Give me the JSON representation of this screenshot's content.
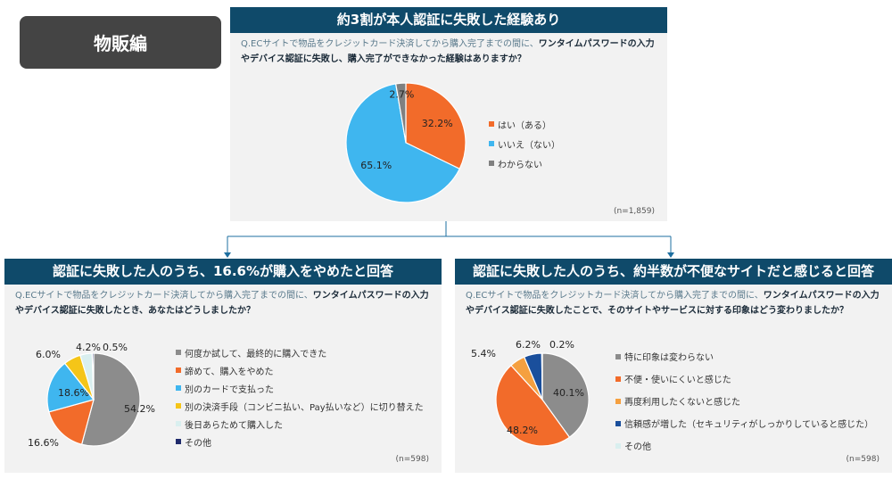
{
  "badge": "物販編",
  "n_labels": [
    "(n=1,859)",
    "(n=598)",
    "(n=598)"
  ],
  "chart_data": [
    {
      "type": "pie",
      "title": "約3割が本人認証に失敗した経験あり",
      "question_plain": "Q.ECサイトで物品をクレジットカード決済してから購入完了までの間に、",
      "question_bold": "ワンタイムパスワードの入力やデバイス認証に失敗し、購入完了ができなかった経験はありますか？",
      "n": "(n=1,859)",
      "slices": [
        {
          "label": "はい（ある）",
          "value": 32.2,
          "color": "#f26b2a"
        },
        {
          "label": "いいえ（ない）",
          "value": 65.1,
          "color": "#3fb6ef"
        },
        {
          "label": "わからない",
          "value": 2.7,
          "color": "#808080"
        }
      ]
    },
    {
      "type": "pie",
      "title": "認証に失敗した人のうち、16.6%が購入をやめたと回答",
      "question_plain": "Q.ECサイトで物品をクレジットカード決済してから購入完了までの間に、",
      "question_bold": "ワンタイムパスワードの入力やデバイス認証に失敗したとき、あなたはどうしましたか？",
      "n": "(n=598)",
      "slices": [
        {
          "label": "何度か試して、最終的に購入できた",
          "value": 54.2,
          "color": "#8c8c8c"
        },
        {
          "label": "諦めて、購入をやめた",
          "value": 16.6,
          "color": "#f26b2a"
        },
        {
          "label": "別のカードで支払った",
          "value": 18.6,
          "color": "#3fb6ef"
        },
        {
          "label": "別の決済手段（コンビニ払い、Pay払いなど）に切り替えた",
          "value": 6.0,
          "color": "#f5c518"
        },
        {
          "label": "後日あらためて購入した",
          "value": 4.2,
          "color": "#d9efef"
        },
        {
          "label": "その他",
          "value": 0.5,
          "color": "#1f2a6b"
        }
      ]
    },
    {
      "type": "pie",
      "title": "認証に失敗した人のうち、約半数が不便なサイトだと感じると回答",
      "question_plain": "Q.ECサイトで物品をクレジットカード決済してから購入完了までの間に、",
      "question_bold": "ワンタイムパスワードの入力やデバイス認証に失敗したことで、そのサイトやサービスに対する印象はどう変わりましたか？",
      "n": "(n=598)",
      "slices": [
        {
          "label": "特に印象は変わらない",
          "value": 40.1,
          "color": "#8c8c8c"
        },
        {
          "label": "不便・使いにくいと感じた",
          "value": 48.2,
          "color": "#f26b2a"
        },
        {
          "label": "再度利用したくないと感じた",
          "value": 5.4,
          "color": "#f5a040"
        },
        {
          "label": "信頼感が増した（セキュリティがしっかりしていると感じた）",
          "value": 6.2,
          "color": "#1a4f9c"
        },
        {
          "label": "その他",
          "value": 0.2,
          "color": "#d9efef"
        }
      ]
    }
  ]
}
